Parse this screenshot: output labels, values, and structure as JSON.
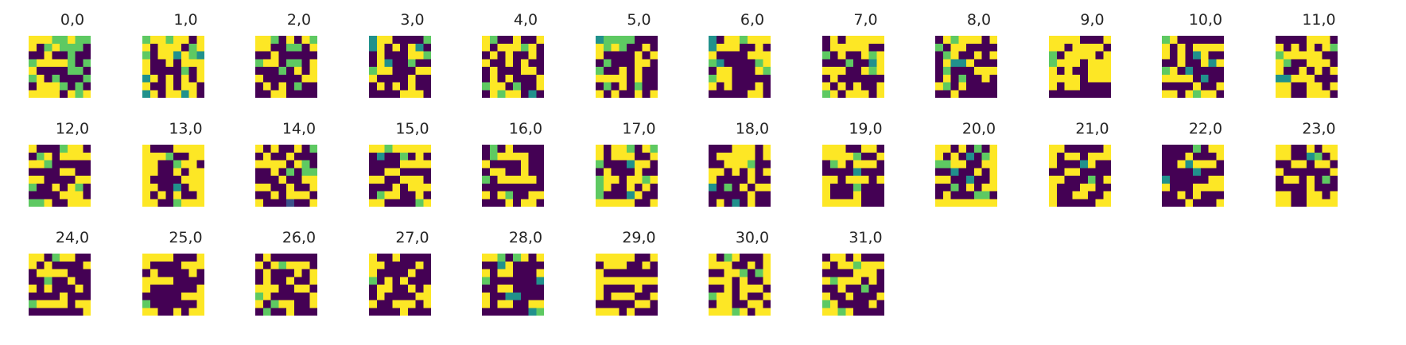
{
  "chart_data": {
    "type": "heatmap",
    "colormap": "viridis",
    "grid_size": [
      8,
      8
    ],
    "value_range": [
      0,
      1
    ],
    "layout": {
      "rows": 3,
      "cols": 12
    },
    "palette": {
      "v0": "#440154",
      "v1": "#3b528b",
      "v2": "#21918c",
      "v3": "#5ec962",
      "v4": "#fde725"
    },
    "panels": [
      {
        "title": "0,0",
        "cells": [
          "44433433",
          "40343330",
          "00400300",
          "34444303",
          "40000330",
          "34030003",
          "04443030",
          "44440434"
        ]
      },
      {
        "title": "1,0",
        "cells": [
          "34434404",
          "40444034",
          "30442432",
          "40040444",
          "40000304",
          "24040404",
          "40040440",
          "24044240"
        ]
      },
      {
        "title": "2,0",
        "cells": [
          "44304043",
          "44003304",
          "00400000",
          "34403304",
          "00030404",
          "40000044",
          "04040300",
          "00440000"
        ]
      },
      {
        "title": "3,0",
        "cells": [
          "24400003",
          "24040420",
          "04000443",
          "04200300",
          "34400044",
          "40000400",
          "04040400",
          "00004440"
        ]
      },
      {
        "title": "4,0",
        "cells": [
          "43004004",
          "40444340",
          "04040040",
          "40040400",
          "04000440",
          "04040004",
          "34403004",
          "04344020"
        ]
      },
      {
        "title": "5,0",
        "cells": [
          "23333000",
          "43430040",
          "40000404",
          "03000440",
          "30040400",
          "44440400",
          "03040300",
          "40400404"
        ]
      },
      {
        "title": "6,0",
        "cells": [
          "20443444",
          "24440040",
          "40000444",
          "32000034",
          "04400043",
          "34400000",
          "40400040",
          "00000440"
        ]
      },
      {
        "title": "7,0",
        "cells": [
          "04044444",
          "04444400",
          "30400434",
          "00030024",
          "44400434",
          "04000000",
          "40404004",
          "34044404"
        ]
      },
      {
        "title": "8,0",
        "cells": [
          "04344404",
          "30440000",
          "03400404",
          "04224000",
          "03000444",
          "04030040",
          "43040000",
          "00400000"
        ]
      },
      {
        "title": "9,0",
        "cells": [
          "44440004",
          "44044440",
          "30444404",
          "34440444",
          "40400444",
          "44440444",
          "40440000",
          "00000000"
        ]
      },
      {
        "title": "10,0",
        "cells": [
          "34000000",
          "40404444",
          "40402400",
          "00400424",
          "34020000",
          "44440200",
          "00004004",
          "44043440"
        ]
      },
      {
        "title": "11,0",
        "cells": [
          "00004440",
          "40404043",
          "34444400",
          "43004440",
          "40040404",
          "22444000",
          "44004404",
          "44004440"
        ]
      },
      {
        "title": "12,0",
        "cells": [
          "40003440",
          "03404444",
          "44300000",
          "00004400",
          "44000044",
          "30040430",
          "00004440",
          "33400444"
        ]
      },
      {
        "title": "13,0",
        "cells": [
          "40004444",
          "44430044",
          "44003440",
          "44004044",
          "40000444",
          "44002044",
          "40404004",
          "44003444"
        ]
      },
      {
        "title": "14,0",
        "cells": [
          "40400403",
          "04004000",
          "44440430",
          "00403033",
          "00040044",
          "44004004",
          "00404440",
          "40001004"
        ]
      },
      {
        "title": "15,0",
        "cells": [
          "44344444",
          "02003040",
          "00004444",
          "00440000",
          "44004440",
          "00040444",
          "03440040",
          "44000034"
        ]
      },
      {
        "title": "16,0",
        "cells": [
          "03040000",
          "03444400",
          "40000400",
          "04400400",
          "30444440",
          "00000000",
          "40430044",
          "00040440"
        ]
      },
      {
        "title": "17,0",
        "cells": [
          "40443043",
          "40444004",
          "30002440",
          "04000400",
          "34404434",
          "34004040",
          "30002400",
          "44444004"
        ]
      },
      {
        "title": "18,0",
        "cells": [
          "00044404",
          "04444404",
          "00444300",
          "44040404",
          "40000400",
          "20304044",
          "00000400",
          "04020400"
        ]
      },
      {
        "title": "19,0",
        "cells": [
          "44400440",
          "44443004",
          "03404440",
          "00002000",
          "44044404",
          "40003000",
          "40004000",
          "44444000"
        ]
      },
      {
        "title": "20,0",
        "cells": [
          "44040304",
          "40402034",
          "33440044",
          "00200404",
          "44002004",
          "00304044",
          "04000330",
          "44444444"
        ]
      },
      {
        "title": "21,0",
        "cells": [
          "44000004",
          "40440444",
          "40002400",
          "00440000",
          "44000304",
          "40004400",
          "40044004",
          "40000044"
        ]
      },
      {
        "title": "22,0",
        "cells": [
          "00003044",
          "00040004",
          "00424440",
          "00002000",
          "20000044",
          "40004444",
          "00404000",
          "00040004"
        ]
      },
      {
        "title": "23,0",
        "cells": [
          "44004044",
          "44002304",
          "00440440",
          "40000004",
          "04404030",
          "00004000",
          "44004404",
          "44004444"
        ]
      },
      {
        "title": "24,0",
        "cells": [
          "44034400",
          "40400004",
          "04444000",
          "00300400",
          "40400040",
          "00004000",
          "34444044",
          "00000004"
        ]
      },
      {
        "title": "25,0",
        "cells": [
          "44440004",
          "40000444",
          "04000040",
          "44440000",
          "40000004",
          "00000444",
          "30000004",
          "44004044"
        ]
      },
      {
        "title": "26,0",
        "cells": [
          "04000000",
          "40434440",
          "04000404",
          "04004004",
          "44400440",
          "34000004",
          "40344004",
          "03004000"
        ]
      },
      {
        "title": "27,0",
        "cells": [
          "40040000",
          "44000040",
          "40000400",
          "30404000",
          "04400404",
          "04000044",
          "40044404",
          "00004000"
        ]
      },
      {
        "title": "28,0",
        "cells": [
          "44303404",
          "00240000",
          "40440004",
          "30000002",
          "00440000",
          "40022000",
          "40440044",
          "00000023"
        ]
      },
      {
        "title": "29,0",
        "cells": [
          "44444004",
          "04440040",
          "40000000",
          "44444444",
          "40000400",
          "40444004",
          "00000440",
          "44404000"
        ]
      },
      {
        "title": "30,0",
        "cells": [
          "40340004",
          "44400404",
          "00443034",
          "44404004",
          "00404440",
          "34404004",
          "04400440",
          "44434044"
        ]
      },
      {
        "title": "31,0",
        "cells": [
          "04404000",
          "40443444",
          "00004440",
          "43444040",
          "00400300",
          "40040004",
          "34000040",
          "44340000"
        ]
      }
    ]
  }
}
